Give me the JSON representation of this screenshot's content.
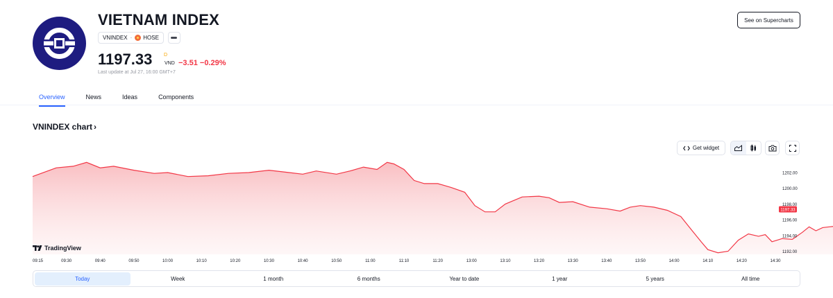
{
  "header": {
    "title": "VIETNAM INDEX",
    "symbol": "VNINDEX",
    "separator": "·",
    "exchange": "HOSE",
    "price": "1197.33",
    "price_superscript": "D",
    "currency": "VND",
    "change": "−3.51 −0.29%",
    "last_update": "Last update at Jul 27, 16:00 GMT+7",
    "supercharts_button": "See on Supercharts"
  },
  "tabs": [
    {
      "label": "Overview",
      "active": true
    },
    {
      "label": "News",
      "active": false
    },
    {
      "label": "Ideas",
      "active": false
    },
    {
      "label": "Components",
      "active": false
    }
  ],
  "chart_section": {
    "heading": "VNINDEX chart",
    "chevron": "›",
    "get_widget": "Get widget",
    "brand": "TradingView"
  },
  "chart_data": {
    "type": "area",
    "series_color": "#f23645",
    "ylim": [
      1191.6,
      1203.5
    ],
    "y_ticks": [
      "1202.00",
      "1200.00",
      "1198.00",
      "1196.00",
      "1194.00",
      "1192.00"
    ],
    "y_tick_values": [
      1202,
      1200,
      1198,
      1196,
      1194,
      1192
    ],
    "last_value_label": "1197.33",
    "x_ticks": [
      "09:15",
      "09:30",
      "09:40",
      "09:50",
      "10:00",
      "10:10",
      "10:20",
      "10:30",
      "10:40",
      "10:50",
      "11:00",
      "11:10",
      "11:20",
      "13:00",
      "13:10",
      "13:20",
      "13:30",
      "13:40",
      "13:50",
      "14:00",
      "14:10",
      "14:20",
      "14:30"
    ],
    "points": [
      [
        0,
        1201.5
      ],
      [
        0.7,
        1202.6
      ],
      [
        1.2,
        1202.8
      ],
      [
        1.6,
        1203.3
      ],
      [
        2.0,
        1202.6
      ],
      [
        2.4,
        1202.8
      ],
      [
        3.0,
        1202.3
      ],
      [
        3.6,
        1201.9
      ],
      [
        4.0,
        1202.0
      ],
      [
        4.6,
        1201.5
      ],
      [
        5.2,
        1201.6
      ],
      [
        5.8,
        1201.9
      ],
      [
        6.4,
        1202.0
      ],
      [
        7.0,
        1202.3
      ],
      [
        7.6,
        1202.0
      ],
      [
        8.0,
        1201.8
      ],
      [
        8.4,
        1202.2
      ],
      [
        9.0,
        1201.8
      ],
      [
        9.4,
        1202.2
      ],
      [
        9.8,
        1202.7
      ],
      [
        10.2,
        1202.4
      ],
      [
        10.5,
        1203.3
      ],
      [
        10.7,
        1203.1
      ],
      [
        11.0,
        1202.4
      ],
      [
        11.3,
        1201.0
      ],
      [
        11.6,
        1200.6
      ],
      [
        12.0,
        1200.6
      ],
      [
        12.4,
        1200.1
      ],
      [
        12.8,
        1199.5
      ],
      [
        13.1,
        1197.8
      ],
      [
        13.4,
        1197.0
      ],
      [
        13.7,
        1197.0
      ],
      [
        14.0,
        1198.0
      ],
      [
        14.5,
        1198.9
      ],
      [
        15.0,
        1199.0
      ],
      [
        15.3,
        1198.8
      ],
      [
        15.6,
        1198.2
      ],
      [
        16.0,
        1198.3
      ],
      [
        16.5,
        1197.6
      ],
      [
        17.0,
        1197.4
      ],
      [
        17.4,
        1197.1
      ],
      [
        17.7,
        1197.6
      ],
      [
        18.0,
        1197.8
      ],
      [
        18.4,
        1197.6
      ],
      [
        18.8,
        1197.2
      ],
      [
        19.2,
        1196.4
      ],
      [
        19.5,
        1194.8
      ],
      [
        19.8,
        1193.2
      ],
      [
        20.0,
        1192.2
      ],
      [
        20.3,
        1191.8
      ],
      [
        20.6,
        1192.0
      ],
      [
        20.9,
        1193.4
      ],
      [
        21.2,
        1194.2
      ],
      [
        21.5,
        1193.9
      ],
      [
        21.7,
        1194.1
      ],
      [
        21.9,
        1193.2
      ],
      [
        22.2,
        1193.6
      ],
      [
        22.5,
        1193.5
      ],
      [
        22.8,
        1194.4
      ],
      [
        23.0,
        1195.1
      ],
      [
        23.2,
        1194.6
      ],
      [
        23.4,
        1195.0
      ],
      [
        23.6,
        1195.1
      ],
      [
        23.8,
        1195.2
      ],
      [
        24.0,
        1194.6
      ],
      [
        24.3,
        1193.9
      ],
      [
        24.6,
        1194.0
      ],
      [
        25.0,
        1194.1
      ],
      [
        25.4,
        1194.4
      ],
      [
        25.8,
        1194.3
      ],
      [
        26.2,
        1194.6
      ],
      [
        26.5,
        1194.8
      ],
      [
        26.8,
        1195.3
      ],
      [
        27.1,
        1195.4
      ],
      [
        27.4,
        1195.3
      ],
      [
        27.7,
        1196.0
      ],
      [
        28.0,
        1196.9
      ],
      [
        28.3,
        1197.4
      ],
      [
        28.6,
        1197.1
      ],
      [
        28.9,
        1196.5
      ],
      [
        29.2,
        1197.3
      ],
      [
        29.4,
        1197.2
      ],
      [
        29.7,
        1197.6
      ],
      [
        30.0,
        1197.4
      ],
      [
        30.3,
        1196.2
      ],
      [
        30.6,
        1196.0
      ],
      [
        30.9,
        1195.9
      ],
      [
        31.2,
        1196.3
      ],
      [
        31.5,
        1197.0
      ],
      [
        31.8,
        1197.9
      ],
      [
        32.0,
        1198.0
      ],
      [
        32.2,
        1197.33
      ]
    ]
  },
  "periods": [
    {
      "label": "Today",
      "active": true
    },
    {
      "label": "Week",
      "active": false
    },
    {
      "label": "1 month",
      "active": false
    },
    {
      "label": "6 months",
      "active": false
    },
    {
      "label": "Year to date",
      "active": false
    },
    {
      "label": "1 year",
      "active": false
    },
    {
      "label": "5 years",
      "active": false
    },
    {
      "label": "All time",
      "active": false
    }
  ]
}
